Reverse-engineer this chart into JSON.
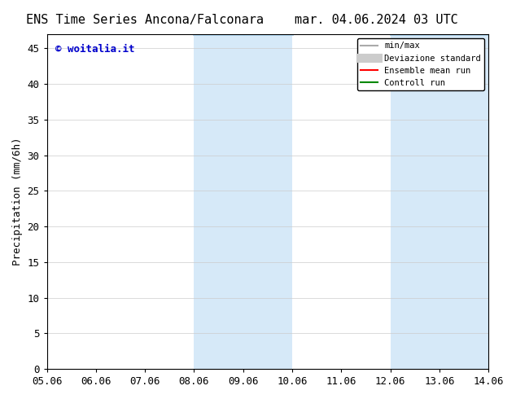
{
  "title_left": "ENS Time Series Ancona/Falconara",
  "title_right": "mar. 04.06.2024 03 UTC",
  "xlabel_ticks": [
    "05.06",
    "06.06",
    "07.06",
    "08.06",
    "09.06",
    "10.06",
    "11.06",
    "12.06",
    "13.06",
    "14.06"
  ],
  "ylabel": "Precipitation (mm/6h)",
  "ylim": [
    0,
    47
  ],
  "yticks": [
    0,
    5,
    10,
    15,
    20,
    25,
    30,
    35,
    40,
    45
  ],
  "xlim": [
    0,
    9
  ],
  "watermark": "© woitalia.it",
  "watermark_color": "#0000cc",
  "background_color": "#ffffff",
  "shaded_regions": [
    {
      "x_start": 3.0,
      "x_end": 4.0,
      "color": "#d6e9f8"
    },
    {
      "x_start": 4.0,
      "x_end": 5.0,
      "color": "#d6e9f8"
    },
    {
      "x_start": 7.0,
      "x_end": 8.0,
      "color": "#d6e9f8"
    },
    {
      "x_start": 8.0,
      "x_end": 9.0,
      "color": "#d6e9f8"
    }
  ],
  "legend_entries": [
    {
      "label": "min/max",
      "color": "#aaaaaa",
      "lw": 1.5
    },
    {
      "label": "Deviazione standard",
      "color": "#cccccc",
      "lw": 8
    },
    {
      "label": "Ensemble mean run",
      "color": "#ff0000",
      "lw": 1.5
    },
    {
      "label": "Controll run",
      "color": "#008800",
      "lw": 1.5
    }
  ],
  "tick_fontsize": 9,
  "label_fontsize": 9,
  "title_fontsize": 11
}
